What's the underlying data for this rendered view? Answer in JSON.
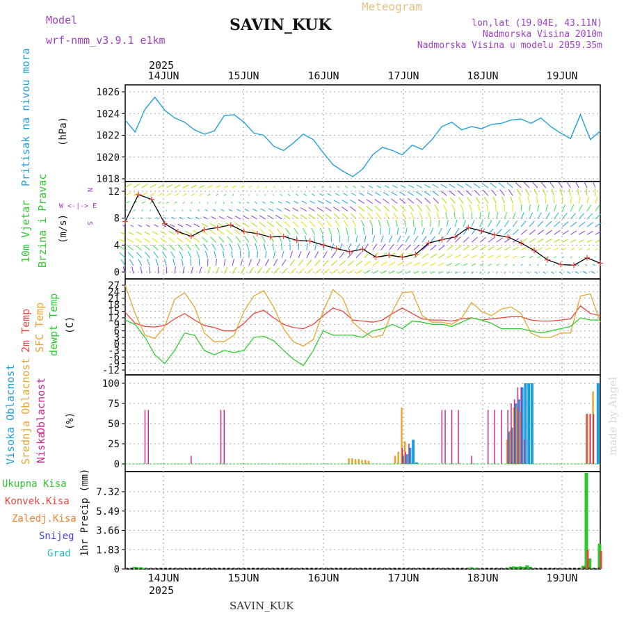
{
  "header": {
    "model_label": "Model",
    "model_name": "wrf-nmm_v3.9.1 e1km",
    "station": "SAVIN_KUK",
    "product": "Meteogram",
    "coords": "lon,lat (19.04E, 43.11N)",
    "elevation": "Nadmorska Visina 2010m",
    "model_elevation": "Nadmorska Visina u modelu 2059.35m",
    "bottom_station": "SAVIN_KUK",
    "watermark": "made by Angel"
  },
  "colors": {
    "pressure": "#22a0dc",
    "temp2m": "#e8453c",
    "sfc": "#e8a530",
    "dewpt": "#2ecc2e",
    "high_cloud": "#1e9ee0",
    "mid_cloud": "#e8a530",
    "low_cloud": "#c8288c",
    "total_precip": "#2ec82e",
    "conv_precip": "#e8453c",
    "purple": "#a040c8"
  },
  "time_axis": {
    "year": "2025",
    "days": [
      "14JUN",
      "15JUN",
      "16JUN",
      "17JUN",
      "18JUN",
      "19JUN"
    ]
  },
  "chart_data": [
    {
      "type": "line",
      "name": "pressure",
      "ylabel": "Pritisak na nivou mora",
      "unit": "(hPa)",
      "yticks": [
        "1018",
        "1020",
        "1022",
        "1024",
        "1026"
      ],
      "ylim": [
        1018,
        1026
      ],
      "xlim": [
        0,
        144
      ],
      "x": [
        0,
        3,
        6,
        9,
        12,
        15,
        18,
        21,
        24,
        27,
        30,
        33,
        36,
        39,
        42,
        45,
        48,
        51,
        54,
        57,
        60,
        63,
        66,
        69,
        72,
        75,
        78,
        81,
        84,
        87,
        90,
        93,
        96,
        99,
        102,
        105,
        108,
        111,
        114,
        117,
        120,
        123,
        126,
        129,
        132,
        135,
        138,
        141,
        144
      ],
      "values": [
        1023.4,
        1022.3,
        1024.4,
        1025.5,
        1024.3,
        1023.6,
        1023.2,
        1022.5,
        1022.1,
        1022.4,
        1023.8,
        1023.9,
        1023.2,
        1022.2,
        1022.0,
        1021.0,
        1020.6,
        1021.3,
        1022.1,
        1021.6,
        1020.4,
        1019.3,
        1018.7,
        1018.2,
        1018.9,
        1020.2,
        1020.9,
        1020.6,
        1020.2,
        1021.1,
        1020.7,
        1021.6,
        1022.8,
        1023.2,
        1022.5,
        1022.8,
        1022.6,
        1023.0,
        1023.1,
        1023.4,
        1023.5,
        1023.1,
        1023.6,
        1022.8,
        1022.2,
        1021.7,
        1023.9,
        1021.6,
        1022.4
      ]
    },
    {
      "type": "scatter",
      "name": "wind",
      "ylabel_1": "10m Vjetar",
      "ylabel_2": "Brzina i Pravac",
      "unit": "(m/s)",
      "compass": "W <-|-> E",
      "compass_s": "S",
      "compass_n": "N",
      "yticks": [
        "0",
        "4",
        "8",
        "12"
      ],
      "ylim": [
        -1,
        13
      ],
      "x": [
        0,
        4,
        8,
        12,
        16,
        20,
        24,
        28,
        32,
        36,
        40,
        44,
        48,
        52,
        56,
        60,
        64,
        68,
        72,
        76,
        80,
        84,
        88,
        92,
        96,
        100,
        104,
        108,
        112,
        116,
        120,
        124,
        128,
        132,
        136,
        140,
        144
      ],
      "values": [
        7.5,
        11.5,
        10.8,
        7.2,
        6.0,
        5.3,
        6.3,
        6.6,
        7.0,
        6.0,
        5.7,
        5.2,
        5.3,
        4.7,
        4.6,
        4.0,
        3.5,
        3.0,
        3.4,
        2.2,
        2.5,
        2.2,
        2.6,
        4.3,
        4.8,
        5.2,
        6.6,
        6.1,
        5.5,
        5.2,
        4.3,
        3.2,
        1.8,
        1.1,
        1.0,
        2.1,
        1.3
      ]
    },
    {
      "type": "line",
      "name": "temperature",
      "ylabel_1": "2m Temp",
      "ylabel_2": "SFC Temp",
      "ylabel_3": "dewpt Temp",
      "unit": "(C)",
      "yticks": [
        "-12",
        "-9",
        "-6",
        "-3",
        "0",
        "3",
        "6",
        "9",
        "12",
        "15",
        "18",
        "21",
        "24",
        "27"
      ],
      "ylim": [
        -12,
        27
      ],
      "x": [
        0,
        3,
        6,
        9,
        12,
        15,
        18,
        21,
        24,
        27,
        30,
        33,
        36,
        39,
        42,
        45,
        48,
        51,
        54,
        57,
        60,
        63,
        66,
        69,
        72,
        75,
        78,
        81,
        84,
        87,
        90,
        93,
        96,
        99,
        102,
        105,
        108,
        111,
        114,
        117,
        120,
        123,
        126,
        129,
        132,
        135,
        138,
        141,
        144
      ],
      "series": [
        {
          "name": "2m Temp",
          "values": [
            14.5,
            9.5,
            8.0,
            7.8,
            8.5,
            11.5,
            14.0,
            11.0,
            8.5,
            7.5,
            6.0,
            6.0,
            9.5,
            14.0,
            15.5,
            12.0,
            9.0,
            7.5,
            7.0,
            9.0,
            13.0,
            16.5,
            15.0,
            11.0,
            10.5,
            10.0,
            11.0,
            14.0,
            16.5,
            14.0,
            11.5,
            11.0,
            11.0,
            10.5,
            11.5,
            12.0,
            11.0,
            11.5,
            12.0,
            12.5,
            12.5,
            11.0,
            10.5,
            10.5,
            11.0,
            11.5,
            17.5,
            14.0,
            13.0
          ]
        },
        {
          "name": "SFC Temp",
          "values": [
            27.0,
            14.0,
            4.0,
            2.5,
            8.0,
            20.5,
            23.5,
            17.0,
            5.0,
            1.0,
            1.0,
            4.0,
            15.0,
            22.0,
            24.5,
            17.0,
            7.0,
            1.0,
            -1.0,
            2.0,
            15.0,
            25.0,
            21.0,
            10.0,
            6.0,
            3.0,
            4.0,
            15.0,
            23.5,
            24.0,
            13.0,
            10.0,
            10.0,
            9.0,
            12.0,
            19.0,
            15.0,
            13.0,
            16.0,
            17.0,
            14.0,
            5.0,
            3.0,
            3.0,
            5.0,
            5.0,
            22.0,
            23.0,
            10.0
          ]
        },
        {
          "name": "dewpt Temp",
          "values": [
            11.0,
            9.0,
            3.0,
            -5.0,
            -9.0,
            -3.0,
            5.0,
            4.0,
            -3.0,
            -5.0,
            -3.0,
            -4.0,
            -3.0,
            3.0,
            3.5,
            1.5,
            -3.0,
            -7.0,
            -10.0,
            -3.0,
            6.0,
            4.0,
            4.0,
            4.0,
            3.0,
            6.0,
            7.0,
            9.0,
            7.0,
            10.5,
            10.0,
            9.0,
            9.0,
            8.0,
            10.0,
            12.0,
            11.0,
            9.5,
            7.0,
            7.0,
            7.0,
            6.0,
            5.0,
            6.0,
            7.0,
            8.0,
            12.0,
            11.0,
            11.0
          ]
        }
      ]
    },
    {
      "type": "bar",
      "name": "clouds",
      "ylabel_1": "Visoka Oblacnost",
      "ylabel_2": "Srednja Oblacnost",
      "ylabel_3": "Niska",
      "ylabel_4": "Oblacnost",
      "unit": "(%)",
      "yticks": [
        "0",
        "25",
        "50",
        "75",
        "100"
      ],
      "ylim": [
        0,
        100
      ],
      "series": [
        {
          "name": "Visoka Oblacnost",
          "x": [
            84,
            85,
            86,
            87,
            88,
            89,
            116,
            117,
            118,
            119,
            120,
            121,
            122,
            123,
            124,
            125,
            143,
            144
          ],
          "values": [
            10,
            12,
            20,
            30,
            2,
            0,
            40,
            45,
            75,
            80,
            95,
            100,
            100,
            100,
            0,
            0,
            100,
            0
          ]
        },
        {
          "name": "Srednja Oblacnost",
          "x": [
            68,
            69,
            70,
            71,
            72,
            73,
            74,
            82,
            83,
            84,
            85,
            116,
            117,
            118,
            119,
            120,
            140,
            141,
            142
          ],
          "values": [
            7,
            7,
            6,
            6,
            5,
            5,
            4,
            10,
            15,
            70,
            28,
            30,
            42,
            70,
            70,
            64,
            62,
            62,
            90
          ]
        },
        {
          "name": "Niska",
          "x": [
            6,
            7,
            20,
            29,
            30,
            84,
            85,
            86,
            96,
            97,
            99,
            101,
            105,
            110,
            112,
            114,
            116,
            117,
            118,
            119,
            120,
            121,
            140,
            141,
            142
          ],
          "values": [
            67,
            67,
            10,
            67,
            67,
            20,
            15,
            25,
            67,
            67,
            67,
            67,
            10,
            67,
            67,
            67,
            67,
            75,
            80,
            95,
            95,
            30,
            62,
            62,
            62
          ]
        }
      ]
    },
    {
      "type": "bar",
      "name": "precipitation",
      "legend": [
        "Ukupna Kisa",
        "Konvek.Kisa",
        "Zaledj.Kisa",
        "Snijeg",
        "Grad"
      ],
      "ylabel": "1hr Precip (mm)",
      "yticks": [
        "0",
        "1.83",
        "3.66",
        "5.49",
        "7.32"
      ],
      "ylim": [
        0,
        9.3
      ],
      "series": [
        {
          "name": "Ukupna Kisa",
          "x": [
            3,
            4,
            5,
            6,
            105,
            106,
            107,
            117,
            118,
            119,
            120,
            121,
            122,
            123,
            139,
            140,
            141,
            144
          ],
          "values": [
            0.2,
            0.15,
            0.15,
            0.1,
            0.15,
            0.1,
            0.1,
            0.2,
            0.25,
            0.2,
            0.25,
            0.2,
            0.35,
            0.2,
            0.3,
            9.1,
            1.0,
            2.4
          ]
        },
        {
          "name": "Konvek.Kisa",
          "x": [
            139,
            140,
            144
          ],
          "values": [
            0.2,
            1.8,
            1.7
          ]
        }
      ]
    }
  ]
}
